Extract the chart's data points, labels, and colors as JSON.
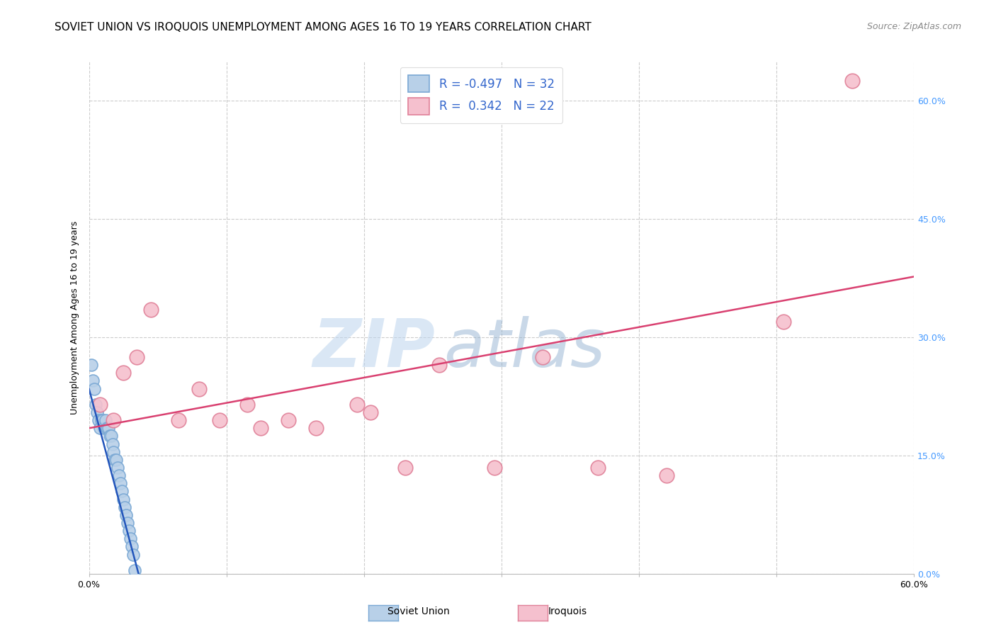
{
  "title": "SOVIET UNION VS IROQUOIS UNEMPLOYMENT AMONG AGES 16 TO 19 YEARS CORRELATION CHART",
  "source": "Source: ZipAtlas.com",
  "ylabel": "Unemployment Among Ages 16 to 19 years",
  "xmin": 0.0,
  "xmax": 0.6,
  "ymin": 0.0,
  "ymax": 0.65,
  "xticks": [
    0.0,
    0.1,
    0.2,
    0.3,
    0.4,
    0.5,
    0.6
  ],
  "ytick_labels_right": [
    "0.0%",
    "15.0%",
    "30.0%",
    "45.0%",
    "60.0%"
  ],
  "ytick_vals_right": [
    0.0,
    0.15,
    0.3,
    0.45,
    0.6
  ],
  "watermark_zip": "ZIP",
  "watermark_atlas": "atlas",
  "soviet_color": "#b8d0e8",
  "soviet_edge": "#7aa8d4",
  "iroquois_color": "#f5c0ce",
  "iroquois_edge": "#e08098",
  "soviet_line_color": "#2255bb",
  "iroquois_line_color": "#d94070",
  "legend_soviet_color": "#b8d0e8",
  "legend_iroquois_color": "#f5c0ce",
  "soviet_R": -0.497,
  "soviet_N": 32,
  "iroquois_R": 0.342,
  "iroquois_N": 22,
  "soviet_x": [
    0.002,
    0.003,
    0.004,
    0.005,
    0.006,
    0.007,
    0.008,
    0.009,
    0.01,
    0.011,
    0.012,
    0.013,
    0.014,
    0.015,
    0.016,
    0.017,
    0.018,
    0.019,
    0.02,
    0.021,
    0.022,
    0.023,
    0.024,
    0.025,
    0.026,
    0.027,
    0.028,
    0.029,
    0.03,
    0.031,
    0.032,
    0.033
  ],
  "soviet_y": [
    0.265,
    0.245,
    0.235,
    0.215,
    0.205,
    0.195,
    0.185,
    0.195,
    0.195,
    0.185,
    0.195,
    0.185,
    0.185,
    0.175,
    0.175,
    0.165,
    0.155,
    0.145,
    0.145,
    0.135,
    0.125,
    0.115,
    0.105,
    0.095,
    0.085,
    0.075,
    0.065,
    0.055,
    0.045,
    0.035,
    0.025,
    0.005
  ],
  "iroquois_x": [
    0.008,
    0.018,
    0.025,
    0.035,
    0.045,
    0.065,
    0.08,
    0.095,
    0.115,
    0.125,
    0.145,
    0.165,
    0.195,
    0.205,
    0.23,
    0.255,
    0.295,
    0.33,
    0.37,
    0.42,
    0.505,
    0.555
  ],
  "iroquois_y": [
    0.215,
    0.195,
    0.255,
    0.275,
    0.335,
    0.195,
    0.235,
    0.195,
    0.215,
    0.185,
    0.195,
    0.185,
    0.215,
    0.205,
    0.135,
    0.265,
    0.135,
    0.275,
    0.135,
    0.125,
    0.32,
    0.625
  ],
  "grid_color": "#cccccc",
  "background_color": "#ffffff",
  "title_fontsize": 11,
  "source_fontsize": 9,
  "axis_label_fontsize": 9,
  "tick_fontsize": 9,
  "legend_fontsize": 12
}
